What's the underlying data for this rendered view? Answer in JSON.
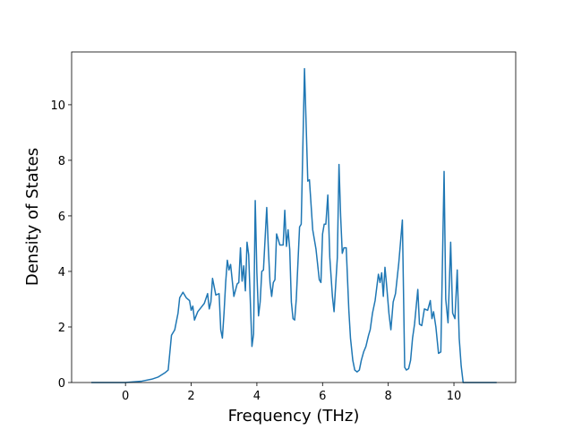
{
  "chart_data": {
    "type": "line",
    "xlabel": "Frequency (THz)",
    "ylabel": "Density of States",
    "x": [
      -1.04,
      0,
      0.5,
      0.8,
      1.0,
      1.2,
      1.3,
      1.4,
      1.5,
      1.6,
      1.65,
      1.75,
      1.85,
      1.95,
      2.0,
      2.05,
      2.1,
      2.2,
      2.3,
      2.4,
      2.5,
      2.55,
      2.6,
      2.65,
      2.75,
      2.85,
      2.9,
      2.95,
      3.0,
      3.05,
      3.1,
      3.15,
      3.2,
      3.3,
      3.4,
      3.45,
      3.5,
      3.55,
      3.6,
      3.65,
      3.7,
      3.75,
      3.85,
      3.9,
      3.95,
      4.0,
      4.05,
      4.1,
      4.15,
      4.2,
      4.3,
      4.35,
      4.4,
      4.45,
      4.5,
      4.55,
      4.6,
      4.7,
      4.8,
      4.85,
      4.9,
      4.95,
      5.0,
      5.05,
      5.1,
      5.15,
      5.2,
      5.3,
      5.35,
      5.45,
      5.55,
      5.6,
      5.7,
      5.8,
      5.9,
      5.95,
      6.0,
      6.05,
      6.1,
      6.16,
      6.22,
      6.3,
      6.35,
      6.45,
      6.5,
      6.55,
      6.58,
      6.6,
      6.65,
      6.72,
      6.8,
      6.85,
      6.92,
      6.98,
      7.05,
      7.12,
      7.18,
      7.25,
      7.32,
      7.4,
      7.45,
      7.52,
      7.6,
      7.7,
      7.75,
      7.8,
      7.85,
      7.9,
      7.95,
      8.02,
      8.08,
      8.15,
      8.22,
      8.32,
      8.43,
      8.5,
      8.55,
      8.62,
      8.68,
      8.74,
      8.8,
      8.9,
      8.95,
      9.02,
      9.1,
      9.2,
      9.28,
      9.33,
      9.38,
      9.45,
      9.53,
      9.6,
      9.7,
      9.75,
      9.82,
      9.9,
      9.96,
      10.03,
      10.1,
      10.16,
      10.22,
      10.28,
      11.3
    ],
    "series": [
      {
        "color": "#1f77b4",
        "values": [
          0,
          0,
          0.05,
          0.12,
          0.2,
          0.35,
          0.45,
          1.7,
          1.9,
          2.5,
          3.05,
          3.25,
          3.05,
          2.95,
          2.6,
          2.75,
          2.25,
          2.55,
          2.7,
          2.85,
          3.2,
          2.65,
          2.9,
          3.75,
          3.15,
          3.2,
          1.9,
          1.6,
          2.5,
          3.6,
          4.4,
          4.05,
          4.25,
          3.1,
          3.55,
          3.6,
          4.85,
          3.65,
          4.2,
          3.3,
          5.05,
          4.6,
          1.3,
          1.75,
          6.55,
          3.95,
          2.4,
          2.9,
          4.0,
          4.05,
          6.3,
          4.8,
          3.6,
          3.1,
          3.6,
          3.7,
          5.35,
          4.95,
          4.95,
          6.2,
          4.9,
          5.5,
          4.8,
          2.9,
          2.3,
          2.25,
          3.0,
          5.6,
          5.7,
          11.3,
          7.25,
          7.3,
          5.5,
          4.8,
          3.7,
          3.6,
          5.35,
          5.7,
          5.7,
          6.75,
          4.5,
          3.1,
          2.55,
          4.5,
          7.85,
          6.0,
          5.2,
          4.65,
          4.85,
          4.85,
          2.6,
          1.6,
          0.8,
          0.45,
          0.38,
          0.45,
          0.8,
          1.1,
          1.3,
          1.7,
          1.9,
          2.5,
          2.95,
          3.9,
          3.6,
          3.95,
          3.1,
          4.15,
          3.5,
          2.5,
          1.9,
          2.9,
          3.2,
          4.3,
          5.85,
          0.55,
          0.45,
          0.5,
          0.8,
          1.6,
          2.1,
          3.35,
          2.1,
          2.05,
          2.65,
          2.6,
          2.95,
          2.3,
          2.55,
          2.0,
          1.05,
          1.1,
          7.6,
          3.0,
          2.15,
          5.05,
          2.5,
          2.3,
          4.05,
          1.6,
          0.6,
          0,
          0
        ]
      }
    ],
    "xlim": [
      -1.64,
      11.88
    ],
    "xticks": [
      0,
      2,
      4,
      6,
      8,
      10
    ],
    "ylim": [
      0,
      11.9
    ],
    "yticks": [
      0,
      2,
      4,
      6,
      8,
      10
    ],
    "grid": false
  }
}
